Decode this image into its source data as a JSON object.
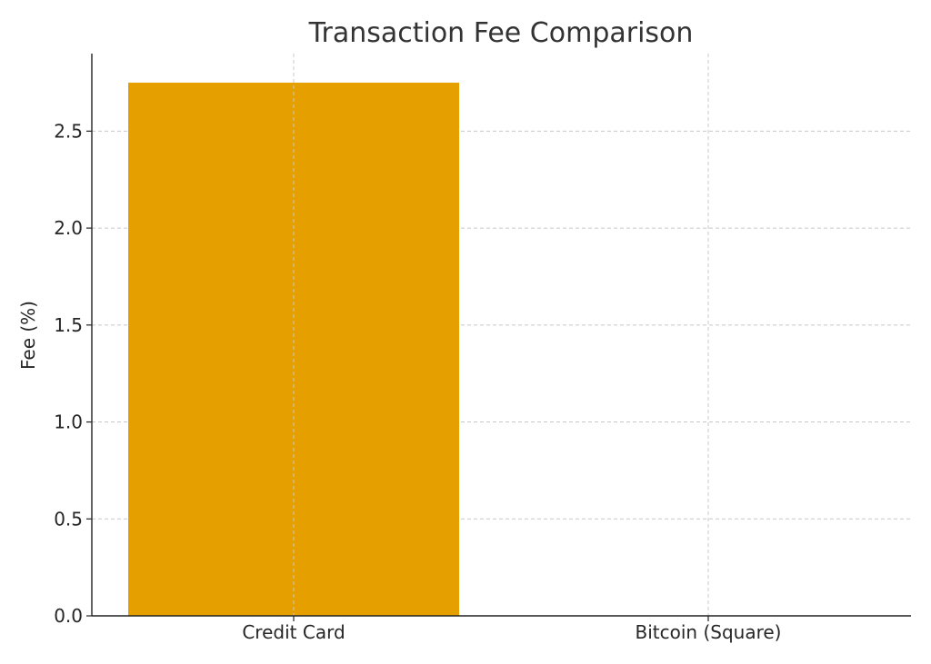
{
  "chart_data": {
    "type": "bar",
    "title": "Transaction Fee Comparison",
    "xlabel": "",
    "ylabel": "Fee (%)",
    "categories": [
      "Credit Card",
      "Bitcoin (Square)"
    ],
    "values": [
      2.75,
      0
    ],
    "ylim": [
      0,
      2.9
    ],
    "yticks": [
      0.0,
      0.5,
      1.0,
      1.5,
      2.0,
      2.5
    ],
    "ytick_labels": [
      "0.0",
      "0.5",
      "1.0",
      "1.5",
      "2.0",
      "2.5"
    ],
    "grid": true,
    "bar_color": "#e5a000",
    "grid_color": "#c8c8c8",
    "axis_color": "#222222"
  }
}
